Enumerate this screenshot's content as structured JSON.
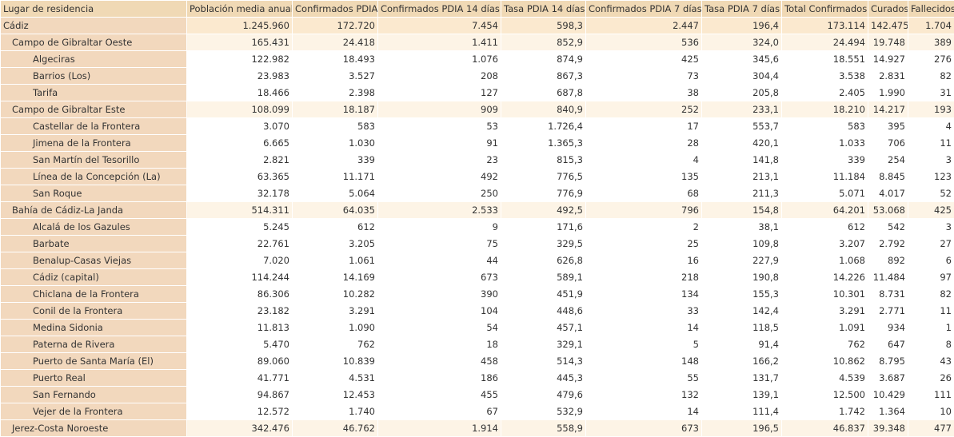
{
  "table": {
    "header": [
      "Lugar de residencia",
      "Población media anual",
      "Confirmados PDIA",
      "Confirmados PDIA 14 días",
      "Tasa PDIA 14 días",
      "Confirmados PDIA 7 días",
      "Tasa PDIA 7 días",
      "Total Confirmados",
      "Curados",
      "Fallecidos"
    ],
    "rows": [
      [
        "Cádiz",
        "1.245.960",
        "172.720",
        "7.454",
        "598,3",
        "2.447",
        "196,4",
        "173.114",
        "142.475",
        "1.704"
      ],
      [
        "Campo de Gibraltar Oeste",
        "165.431",
        "24.418",
        "1.411",
        "852,9",
        "536",
        "324,0",
        "24.494",
        "19.748",
        "389"
      ],
      [
        "Algeciras",
        "122.982",
        "18.493",
        "1.076",
        "874,9",
        "425",
        "345,6",
        "18.551",
        "14.927",
        "276"
      ],
      [
        "Barrios (Los)",
        "23.983",
        "3.527",
        "208",
        "867,3",
        "73",
        "304,4",
        "3.538",
        "2.831",
        "82"
      ],
      [
        "Tarifa",
        "18.466",
        "2.398",
        "127",
        "687,8",
        "38",
        "205,8",
        "2.405",
        "1.990",
        "31"
      ],
      [
        "Campo de Gibraltar Este",
        "108.099",
        "18.187",
        "909",
        "840,9",
        "252",
        "233,1",
        "18.210",
        "14.217",
        "193"
      ],
      [
        "Castellar de la Frontera",
        "3.070",
        "583",
        "53",
        "1.726,4",
        "17",
        "553,7",
        "583",
        "395",
        "4"
      ],
      [
        "Jimena de la Frontera",
        "6.665",
        "1.030",
        "91",
        "1.365,3",
        "28",
        "420,1",
        "1.033",
        "706",
        "11"
      ],
      [
        "San Martín del Tesorillo",
        "2.821",
        "339",
        "23",
        "815,3",
        "4",
        "141,8",
        "339",
        "254",
        "3"
      ],
      [
        "Línea de la Concepción (La)",
        "63.365",
        "11.171",
        "492",
        "776,5",
        "135",
        "213,1",
        "11.184",
        "8.845",
        "123"
      ],
      [
        "San Roque",
        "32.178",
        "5.064",
        "250",
        "776,9",
        "68",
        "211,3",
        "5.071",
        "4.017",
        "52"
      ],
      [
        "Bahía de Cádiz-La Janda",
        "514.311",
        "64.035",
        "2.533",
        "492,5",
        "796",
        "154,8",
        "64.201",
        "53.068",
        "425"
      ],
      [
        "Alcalá de los Gazules",
        "5.245",
        "612",
        "9",
        "171,6",
        "2",
        "38,1",
        "612",
        "542",
        "3"
      ],
      [
        "Barbate",
        "22.761",
        "3.205",
        "75",
        "329,5",
        "25",
        "109,8",
        "3.207",
        "2.792",
        "27"
      ],
      [
        "Benalup-Casas Viejas",
        "7.020",
        "1.061",
        "44",
        "626,8",
        "16",
        "227,9",
        "1.068",
        "892",
        "6"
      ],
      [
        "Cádiz (capital)",
        "114.244",
        "14.169",
        "673",
        "589,1",
        "218",
        "190,8",
        "14.226",
        "11.484",
        "97"
      ],
      [
        "Chiclana de la Frontera",
        "86.306",
        "10.282",
        "390",
        "451,9",
        "134",
        "155,3",
        "10.301",
        "8.731",
        "82"
      ],
      [
        "Conil de la Frontera",
        "23.182",
        "3.291",
        "104",
        "448,6",
        "33",
        "142,4",
        "3.291",
        "2.771",
        "11"
      ],
      [
        "Medina Sidonia",
        "11.813",
        "1.090",
        "54",
        "457,1",
        "14",
        "118,5",
        "1.091",
        "934",
        "1"
      ],
      [
        "Paterna de Rivera",
        "5.470",
        "762",
        "18",
        "329,1",
        "5",
        "91,4",
        "762",
        "647",
        "8"
      ],
      [
        "Puerto de Santa María (El)",
        "89.060",
        "10.839",
        "458",
        "514,3",
        "148",
        "166,2",
        "10.862",
        "8.795",
        "43"
      ],
      [
        "Puerto Real",
        "41.771",
        "4.531",
        "186",
        "445,3",
        "55",
        "131,7",
        "4.539",
        "3.687",
        "26"
      ],
      [
        "San Fernando",
        "94.867",
        "12.453",
        "455",
        "479,6",
        "132",
        "139,1",
        "12.500",
        "10.429",
        "111"
      ],
      [
        "Vejer de la Frontera",
        "12.572",
        "1.740",
        "67",
        "532,9",
        "14",
        "111,4",
        "1.742",
        "1.364",
        "10"
      ],
      [
        "Jerez-Costa Noroeste",
        "342.476",
        "46.762",
        "1.914",
        "558,9",
        "673",
        "196,5",
        "46.837",
        "39.348",
        "477"
      ]
    ]
  }
}
